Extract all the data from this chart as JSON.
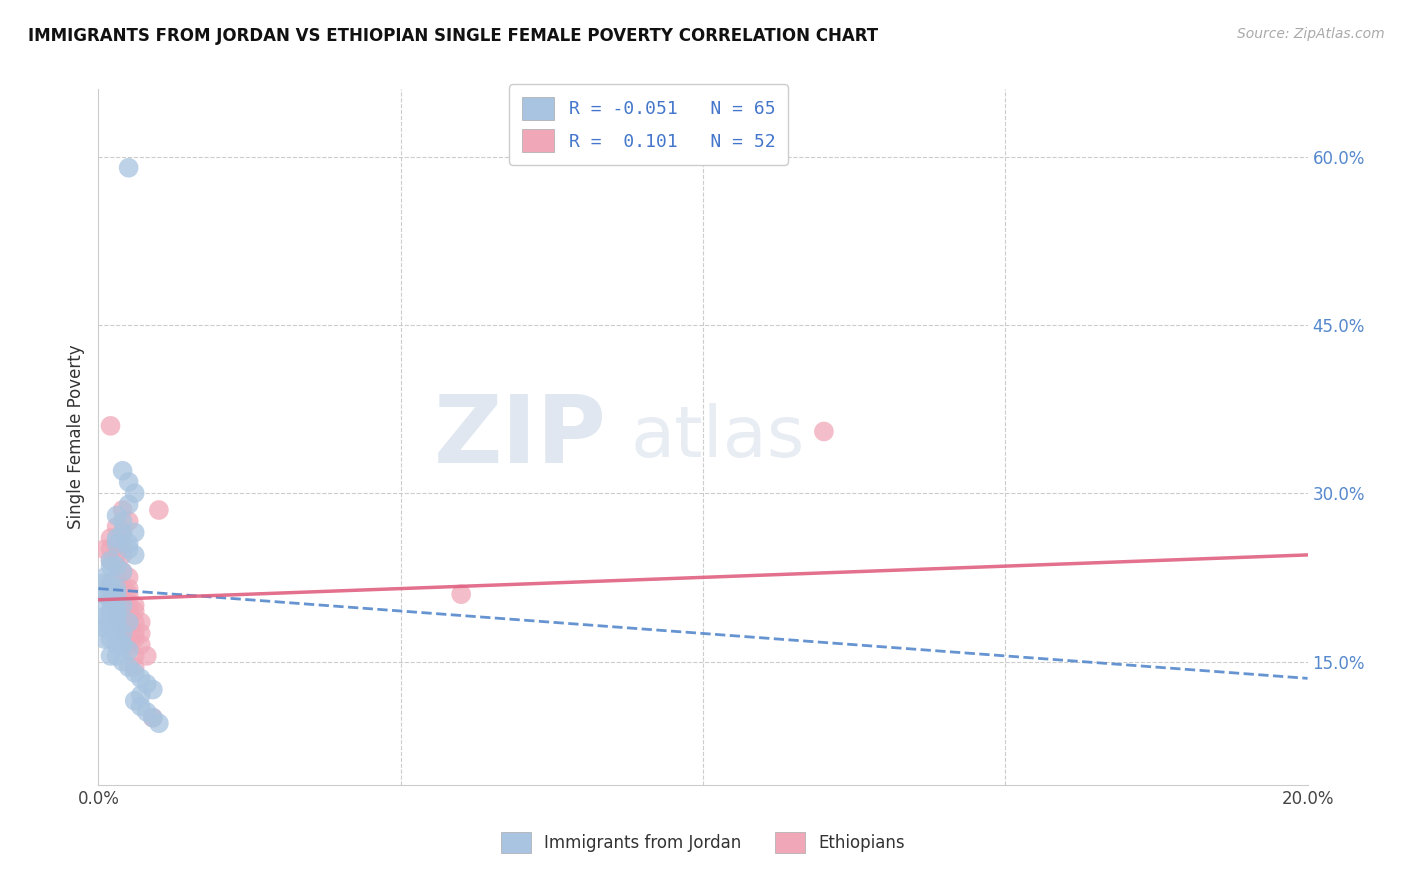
{
  "title": "IMMIGRANTS FROM JORDAN VS ETHIOPIAN SINGLE FEMALE POVERTY CORRELATION CHART",
  "source": "Source: ZipAtlas.com",
  "ylabel": "Single Female Poverty",
  "ytick_vals": [
    0.6,
    0.45,
    0.3,
    0.15
  ],
  "ytick_labels": [
    "60.0%",
    "45.0%",
    "30.0%",
    "15.0%"
  ],
  "xlim": [
    0.0,
    0.2
  ],
  "ylim": [
    0.04,
    0.66
  ],
  "jordan_color": "#a8c4e0",
  "jordan_line_color": "#5588cc",
  "ethiopian_color": "#f0a8b8",
  "ethiopian_line_color": "#e06080",
  "jordan_R": -0.051,
  "jordan_N": 65,
  "ethiopian_R": 0.101,
  "ethiopian_N": 52,
  "watermark_zip": "ZIP",
  "watermark_atlas": "atlas",
  "legend_labels": [
    "Immigrants from Jordan",
    "Ethiopians"
  ],
  "jordan_x": [
    0.005,
    0.004,
    0.005,
    0.006,
    0.005,
    0.003,
    0.004,
    0.004,
    0.006,
    0.003,
    0.005,
    0.003,
    0.005,
    0.006,
    0.002,
    0.002,
    0.003,
    0.004,
    0.001,
    0.001,
    0.002,
    0.002,
    0.003,
    0.003,
    0.001,
    0.001,
    0.002,
    0.002,
    0.003,
    0.004,
    0.001,
    0.002,
    0.003,
    0.001,
    0.002,
    0.003,
    0.001,
    0.002,
    0.003,
    0.005,
    0.001,
    0.002,
    0.003,
    0.004,
    0.001,
    0.002,
    0.003,
    0.004,
    0.003,
    0.004,
    0.005,
    0.002,
    0.003,
    0.004,
    0.005,
    0.006,
    0.007,
    0.008,
    0.009,
    0.007,
    0.006,
    0.007,
    0.008,
    0.009,
    0.01
  ],
  "jordan_y": [
    0.59,
    0.32,
    0.31,
    0.3,
    0.29,
    0.28,
    0.275,
    0.265,
    0.265,
    0.26,
    0.255,
    0.255,
    0.25,
    0.245,
    0.24,
    0.235,
    0.235,
    0.23,
    0.225,
    0.22,
    0.22,
    0.215,
    0.215,
    0.21,
    0.21,
    0.21,
    0.205,
    0.205,
    0.2,
    0.2,
    0.2,
    0.195,
    0.195,
    0.19,
    0.19,
    0.19,
    0.185,
    0.185,
    0.185,
    0.185,
    0.18,
    0.18,
    0.175,
    0.175,
    0.17,
    0.17,
    0.17,
    0.165,
    0.165,
    0.165,
    0.16,
    0.155,
    0.155,
    0.15,
    0.145,
    0.14,
    0.135,
    0.13,
    0.125,
    0.12,
    0.115,
    0.11,
    0.105,
    0.1,
    0.095
  ],
  "ethiopian_x": [
    0.002,
    0.004,
    0.005,
    0.003,
    0.004,
    0.002,
    0.003,
    0.004,
    0.001,
    0.002,
    0.003,
    0.004,
    0.002,
    0.003,
    0.004,
    0.005,
    0.002,
    0.003,
    0.004,
    0.005,
    0.003,
    0.004,
    0.005,
    0.002,
    0.003,
    0.004,
    0.005,
    0.006,
    0.003,
    0.004,
    0.005,
    0.006,
    0.003,
    0.004,
    0.005,
    0.006,
    0.007,
    0.004,
    0.005,
    0.006,
    0.007,
    0.005,
    0.006,
    0.005,
    0.007,
    0.006,
    0.008,
    0.006,
    0.06,
    0.009,
    0.01,
    0.12
  ],
  "ethiopian_y": [
    0.36,
    0.285,
    0.275,
    0.27,
    0.265,
    0.26,
    0.255,
    0.255,
    0.25,
    0.25,
    0.245,
    0.245,
    0.24,
    0.235,
    0.23,
    0.225,
    0.22,
    0.22,
    0.215,
    0.215,
    0.21,
    0.21,
    0.21,
    0.205,
    0.205,
    0.2,
    0.2,
    0.2,
    0.195,
    0.195,
    0.195,
    0.195,
    0.19,
    0.19,
    0.185,
    0.185,
    0.185,
    0.18,
    0.18,
    0.175,
    0.175,
    0.17,
    0.17,
    0.165,
    0.165,
    0.155,
    0.155,
    0.145,
    0.21,
    0.1,
    0.285,
    0.355
  ]
}
